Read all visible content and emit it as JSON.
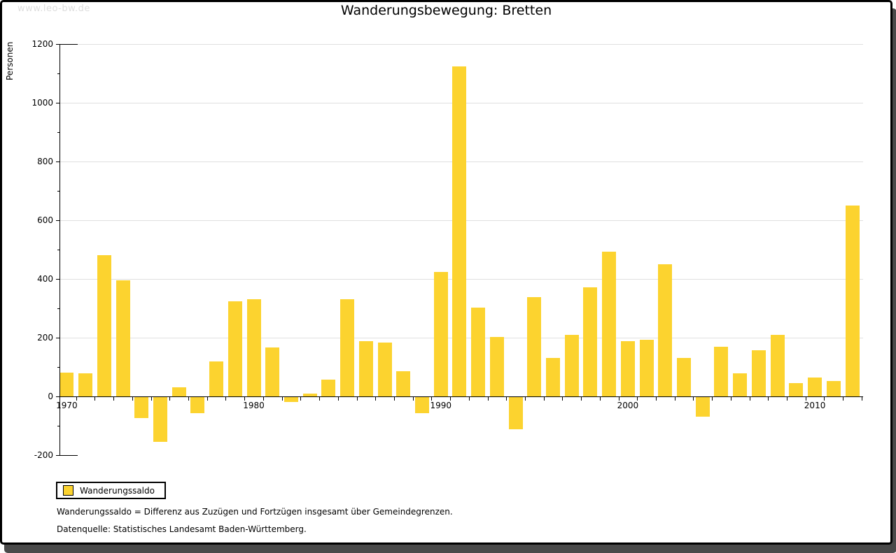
{
  "watermark": "www.leo-bw.de",
  "title": "Wanderungsbewegung: Bretten",
  "legend": {
    "label": "Wanderungssaldo",
    "swatch_color": "#fcd32f"
  },
  "footnotes": [
    "Wanderungssaldo = Differenz aus Zuzügen und Fortzügen insgesamt über Gemeindegrenzen.",
    "Datenquelle: Statistisches Landesamt Baden-Württemberg."
  ],
  "chart_data": {
    "type": "bar",
    "title": "Wanderungsbewegung: Bretten",
    "xlabel": "",
    "ylabel": "Personen",
    "ylim": [
      -200,
      1200
    ],
    "ytick_step": 200,
    "grid": true,
    "legend_position": "bottom-left",
    "bar_color": "#fcd32f",
    "grid_color": "#e0e0e0",
    "axis_color": "#000000",
    "x_labeled_ticks": [
      1970,
      1980,
      1990,
      2000,
      2010
    ],
    "series": [
      {
        "name": "Wanderungssaldo",
        "x": [
          1970,
          1971,
          1972,
          1973,
          1974,
          1975,
          1976,
          1977,
          1978,
          1979,
          1980,
          1981,
          1982,
          1983,
          1984,
          1985,
          1986,
          1987,
          1988,
          1989,
          1990,
          1991,
          1992,
          1993,
          1994,
          1995,
          1996,
          1997,
          1998,
          1999,
          2000,
          2001,
          2002,
          2003,
          2004,
          2005,
          2006,
          2007,
          2008,
          2009,
          2010,
          2011,
          2012
        ],
        "values": [
          80,
          78,
          482,
          396,
          -72,
          -152,
          30,
          -55,
          120,
          325,
          332,
          167,
          -16,
          9,
          58,
          330,
          189,
          183,
          86,
          -55,
          425,
          1125,
          303,
          202,
          -110,
          339,
          130,
          209,
          372,
          494,
          188,
          192,
          451,
          130,
          -67,
          169,
          78,
          158,
          209,
          46,
          64,
          52,
          649
        ]
      }
    ]
  }
}
